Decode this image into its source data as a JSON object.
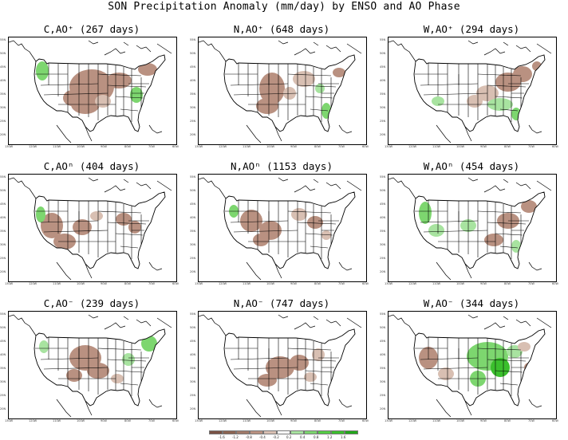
{
  "figure": {
    "title": "SON Precipitation Anomaly (mm/day) by ENSO and AO Phase"
  },
  "axes": {
    "x_ticks": [
      "130W",
      "120W",
      "110W",
      "100W",
      "90W",
      "80W",
      "70W",
      "60W"
    ],
    "y_ticks": [
      "55N",
      "50N",
      "45N",
      "40N",
      "35N",
      "30N",
      "25N",
      "20N"
    ]
  },
  "colors": {
    "dry_strong": "#8c6452",
    "dry": "#b99181",
    "dry_light": "#d8bfb2",
    "wet_light": "#a8e3a0",
    "wet": "#7dd66f",
    "wet_strong": "#3bbf2d",
    "outline": "#000000"
  },
  "panels": [
    {
      "title": "C,AO⁺ (267 days)",
      "pattern": "dry-south-central, dry east coast, wet pacific northwest and southeast coast"
    },
    {
      "title": "N,AO⁺ (648 days)",
      "pattern": "dry central and south plains, wet florida"
    },
    {
      "title": "W,AO⁺ (294 days)",
      "pattern": "dry east and mid-atlantic, wet southeast and gulf"
    },
    {
      "title": "C,AOⁿ (404 days)",
      "pattern": "dry west and southwest, dry mid-atlantic"
    },
    {
      "title": "N,AOⁿ (1153 days)",
      "pattern": "dry interior west and central, wet spots"
    },
    {
      "title": "W,AOⁿ (454 days)",
      "pattern": "wet west, dry northeast and south"
    },
    {
      "title": "C,AO⁻ (239 days)",
      "pattern": "dry central plains, wet northeast"
    },
    {
      "title": "N,AO⁻ (747 days)",
      "pattern": "dry central and south"
    },
    {
      "title": "W,AO⁻ (344 days)",
      "pattern": "wet midwest and plains, dry far west"
    }
  ],
  "colorbar": {
    "labels": [
      "-1.6",
      "-1.2",
      "-0.8",
      "-0.4",
      "-0.2",
      "0.2",
      "0.4",
      "0.8",
      "1.2",
      "1.6"
    ],
    "swatches": [
      "#7a5244",
      "#8c6452",
      "#a07a69",
      "#b99181",
      "#d8bfb2",
      "#ffffff",
      "#a8e3a0",
      "#7dd66f",
      "#55cc45",
      "#3bbf2d",
      "#22a81a"
    ]
  }
}
